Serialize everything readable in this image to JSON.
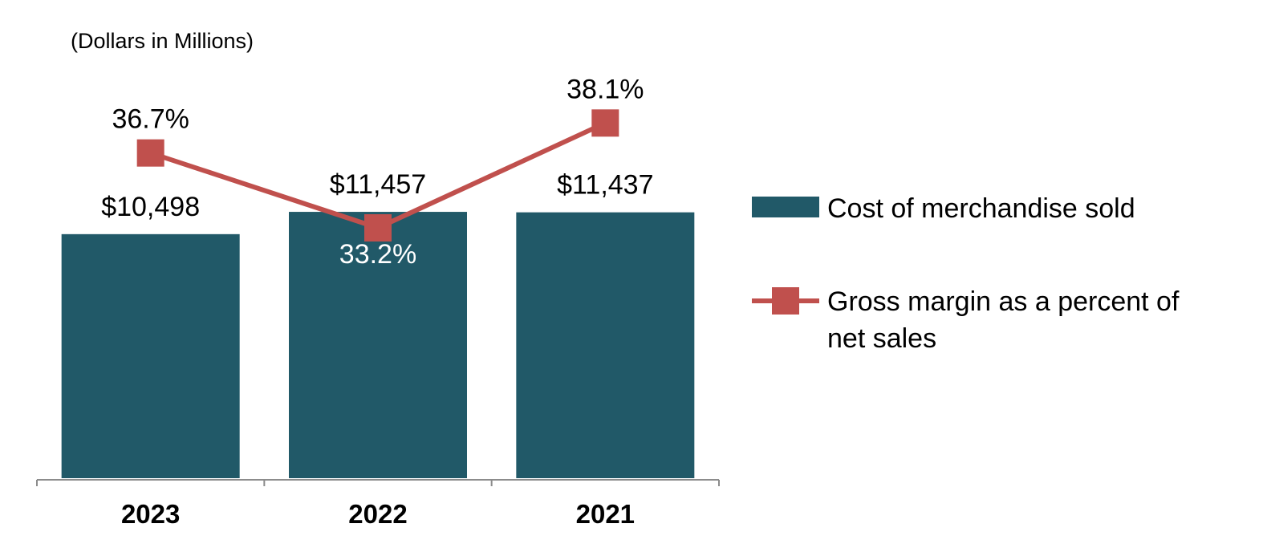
{
  "chart_data": {
    "type": "bar",
    "subtitle": "(Dollars in Millions)",
    "categories": [
      "2023",
      "2022",
      "2021"
    ],
    "series": [
      {
        "name": "Cost of merchandise sold",
        "kind": "bar",
        "values": [
          10498,
          11457,
          11437
        ],
        "labels": [
          "$10,498",
          "$11,457",
          "$11,437"
        ],
        "color": "#215968"
      },
      {
        "name": "Gross margin as a percent of net sales",
        "kind": "line",
        "values": [
          36.7,
          33.2,
          38.1
        ],
        "labels": [
          "36.7%",
          "33.2%",
          "38.1%"
        ],
        "color": "#C0504D"
      }
    ],
    "bar_axis": {
      "ylim": [
        0,
        18500
      ]
    },
    "line_axis": {
      "ylim": [
        21.5,
        41.6
      ]
    },
    "label_colors": [
      "#000000",
      "#FFFFFF",
      "#000000"
    ],
    "legend": {
      "position": "right",
      "bar_label": "Cost of merchandise sold",
      "line_label_lines": [
        "Gross margin as a percent of",
        "net sales"
      ]
    },
    "xlabel": "",
    "ylabel": ""
  }
}
